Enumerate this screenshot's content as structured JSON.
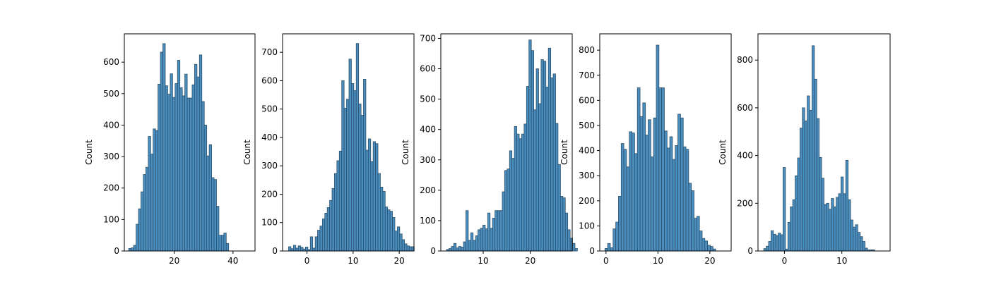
{
  "chart_data": [
    {
      "type": "bar",
      "ylabel": "Count",
      "xlim": [
        3.0,
        47.5
      ],
      "ylim": [
        0,
        690
      ],
      "xticks": [
        20,
        40
      ],
      "yticks": [
        0,
        100,
        200,
        300,
        400,
        500,
        600
      ],
      "bin_start": 4.5,
      "bin_width": 0.83,
      "values": [
        8,
        10,
        18,
        85,
        134,
        188,
        243,
        266,
        364,
        308,
        388,
        383,
        530,
        632,
        659,
        525,
        498,
        563,
        488,
        532,
        606,
        519,
        493,
        562,
        486,
        486,
        528,
        593,
        553,
        623,
        475,
        400,
        302,
        338,
        233,
        227,
        142,
        50,
        50,
        57,
        24
      ]
    },
    {
      "type": "bar",
      "ylabel": "Count",
      "xlim": [
        -5.3,
        23.2
      ],
      "ylim": [
        0,
        765
      ],
      "xticks": [
        0,
        10,
        20
      ],
      "yticks": [
        0,
        100,
        200,
        300,
        400,
        500,
        600,
        700
      ],
      "bin_start": -4.0,
      "bin_width": 0.524,
      "values": [
        15,
        8,
        20,
        10,
        18,
        13,
        7,
        14,
        5,
        50,
        10,
        50,
        73,
        88,
        113,
        133,
        153,
        178,
        220,
        273,
        318,
        352,
        600,
        503,
        535,
        676,
        590,
        565,
        731,
        518,
        478,
        605,
        355,
        395,
        315,
        385,
        378,
        273,
        225,
        210,
        155,
        145,
        140,
        118,
        70,
        85,
        60,
        40,
        25,
        18,
        15,
        15
      ]
    },
    {
      "type": "bar",
      "ylabel": "Count",
      "xlim": [
        1.0,
        28.9
      ],
      "ylim": [
        0,
        715
      ],
      "xticks": [
        10,
        20
      ],
      "yticks": [
        0,
        100,
        200,
        300,
        400,
        500,
        600,
        700
      ],
      "bin_start": 2.2,
      "bin_width": 0.515,
      "values": [
        5,
        8,
        15,
        25,
        10,
        15,
        13,
        30,
        133,
        35,
        60,
        35,
        50,
        70,
        75,
        85,
        73,
        125,
        75,
        108,
        133,
        133,
        133,
        195,
        265,
        270,
        330,
        305,
        410,
        385,
        370,
        385,
        418,
        542,
        695,
        660,
        465,
        600,
        485,
        630,
        625,
        540,
        668,
        570,
        583,
        420,
        285,
        180,
        175,
        125,
        70,
        42,
        25,
        8
      ]
    },
    {
      "type": "bar",
      "ylabel": "Count",
      "xlim": [
        -1.2,
        24.1
      ],
      "ylim": [
        0,
        865
      ],
      "xticks": [
        0,
        10,
        20
      ],
      "yticks": [
        0,
        100,
        200,
        300,
        400,
        500,
        600,
        700,
        800
      ],
      "bin_start": -0.2,
      "bin_width": 0.52,
      "values": [
        10,
        30,
        13,
        88,
        115,
        218,
        428,
        405,
        335,
        475,
        470,
        388,
        650,
        535,
        590,
        462,
        523,
        375,
        530,
        820,
        650,
        650,
        478,
        410,
        455,
        365,
        420,
        545,
        530,
        415,
        405,
        270,
        240,
        130,
        138,
        80,
        50,
        40,
        23,
        18,
        8
      ]
    },
    {
      "type": "bar",
      "ylabel": "Count",
      "xlim": [
        -4.6,
        18.4
      ],
      "ylim": [
        0,
        910
      ],
      "xticks": [
        0,
        10
      ],
      "yticks": [
        0,
        200,
        400,
        600,
        800
      ],
      "bin_start": -3.6,
      "bin_width": 0.42,
      "values": [
        10,
        20,
        40,
        85,
        70,
        65,
        75,
        68,
        350,
        8,
        120,
        185,
        215,
        315,
        390,
        515,
        600,
        545,
        650,
        590,
        860,
        720,
        555,
        392,
        305,
        195,
        200,
        175,
        220,
        185,
        225,
        240,
        310,
        240,
        380,
        215,
        130,
        100,
        110,
        78,
        60,
        40,
        12,
        5,
        5,
        5
      ]
    }
  ]
}
